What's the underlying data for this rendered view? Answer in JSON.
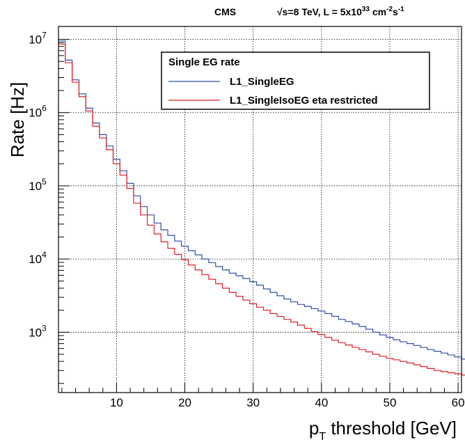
{
  "chart_data": {
    "type": "line",
    "header": {
      "experiment": "CMS",
      "energy": "√s=8 TeV, L = 5x10",
      "lumi_exp": "33",
      "lumi_unit": " cm",
      "cm_exp": "-2",
      "s_unit": "s",
      "s_exp": "-1"
    },
    "xlabel": {
      "main": "p",
      "sub": "T",
      "rest": " threshold   [GeV]"
    },
    "ylabel": "Rate [Hz]",
    "xlim": [
      1.5,
      60.5
    ],
    "ylim_log": [
      150,
      15000000
    ],
    "y_scale": "log",
    "grid": true,
    "x_ticks": [
      "10",
      "20",
      "30",
      "40",
      "50",
      "60"
    ],
    "y_ticks": [
      {
        "base": "10",
        "exp": "3"
      },
      {
        "base": "10",
        "exp": "4"
      },
      {
        "base": "10",
        "exp": "5"
      },
      {
        "base": "10",
        "exp": "6"
      },
      {
        "base": "10",
        "exp": "7"
      }
    ],
    "legend": {
      "placement": "top-right",
      "title": "Single EG rate",
      "entries": [
        "L1_SingleEG",
        "L1_SingleIsoEG eta restricted"
      ]
    },
    "series": [
      {
        "name": "L1_SingleEG",
        "color": "#2f4fa8",
        "x_start": 1.5,
        "bin_width": 1,
        "values": [
          9500000,
          5200000,
          2800000,
          1800000,
          1150000,
          720000,
          500000,
          350000,
          230000,
          160000,
          108000,
          73000,
          52000,
          40000,
          31000,
          25000,
          21000,
          17600,
          15000,
          13000,
          11400,
          10000,
          8900,
          7900,
          7100,
          6400,
          5900,
          5400,
          4900,
          4400,
          3900,
          3500,
          3150,
          2850,
          2600,
          2400,
          2250,
          2100,
          1950,
          1800,
          1650,
          1500,
          1400,
          1300,
          1200,
          1100,
          1000,
          920,
          850,
          790,
          740,
          700,
          660,
          620,
          580,
          550,
          520,
          490,
          460,
          430
        ],
        "errors": [
          0,
          0,
          0,
          0,
          0,
          0,
          0,
          0,
          0,
          0,
          0,
          0,
          0,
          0,
          0,
          0,
          0,
          0,
          0,
          0,
          0,
          0,
          0,
          0,
          0,
          0,
          0,
          0,
          0,
          0,
          0,
          0,
          0,
          0,
          0,
          0,
          0,
          0,
          0,
          0,
          0,
          0,
          0,
          0,
          0,
          0,
          0,
          0,
          0,
          0,
          0,
          0,
          0,
          0,
          0,
          0,
          0,
          0,
          0,
          0
        ]
      },
      {
        "name": "L1_SingleIsoEG eta restricted",
        "color": "#e01f26",
        "x_start": 1.5,
        "bin_width": 1,
        "values": [
          8600000,
          4800000,
          2600000,
          1650000,
          1050000,
          650000,
          450000,
          310000,
          200000,
          140000,
          92000,
          58000,
          40000,
          29000,
          22000,
          17200,
          14000,
          11600,
          9800,
          8300,
          7100,
          6100,
          5300,
          4600,
          4000,
          3500,
          3100,
          2750,
          2450,
          2200,
          2000,
          1800,
          1650,
          1500,
          1380,
          1250,
          1130,
          1020,
          930,
          850,
          780,
          720,
          670,
          620,
          580,
          540,
          500,
          470,
          440,
          420,
          400,
          380,
          360,
          340,
          320,
          300,
          290,
          280,
          270,
          260
        ],
        "errors": [
          0,
          0,
          0,
          0,
          0,
          0,
          0,
          0,
          0,
          0,
          0,
          0,
          0,
          0,
          0,
          0,
          0,
          0,
          0,
          0,
          0,
          0,
          0,
          0,
          0,
          0,
          0,
          0,
          0,
          0,
          0,
          0,
          0,
          0,
          0,
          0,
          0,
          0,
          0,
          0,
          0,
          0,
          0,
          0,
          0,
          0,
          0,
          0,
          0,
          0,
          0,
          0,
          0,
          0,
          0,
          0,
          0,
          0,
          0,
          0
        ]
      }
    ]
  }
}
